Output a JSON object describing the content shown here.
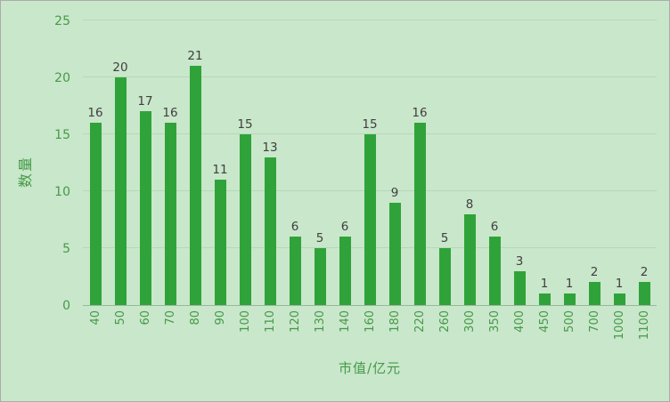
{
  "chart_data": {
    "type": "bar",
    "categories": [
      "40",
      "50",
      "60",
      "70",
      "80",
      "90",
      "100",
      "110",
      "120",
      "130",
      "140",
      "160",
      "180",
      "220",
      "260",
      "300",
      "350",
      "400",
      "450",
      "500",
      "700",
      "1000",
      "1100"
    ],
    "values": [
      16,
      20,
      17,
      16,
      21,
      11,
      15,
      13,
      6,
      5,
      6,
      15,
      9,
      16,
      5,
      8,
      6,
      3,
      1,
      1,
      2,
      1,
      2
    ],
    "title": "",
    "xlabel": "市值/亿元",
    "ylabel": "数量",
    "ylim": [
      0,
      25
    ],
    "yticks": [
      0,
      5,
      10,
      15,
      20,
      25
    ],
    "grid": true,
    "legend": "none",
    "colors": {
      "background": "#c9e7ca",
      "bar": "#2fa33a",
      "axis_text": "#459a49",
      "data_label": "#404040",
      "gridline": "#b7d8b8"
    }
  }
}
